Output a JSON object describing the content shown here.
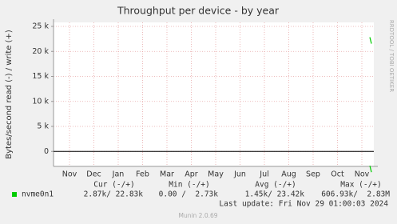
{
  "chart_data": {
    "type": "line",
    "title": "Throughput per device - by year",
    "y_label": "Bytes/second read (-) / write (+)",
    "side_text": "RRDTOOL / TOBI OETIKER",
    "categories": [
      "Nov",
      "Dec",
      "Jan",
      "Feb",
      "Mar",
      "Apr",
      "May",
      "Jun",
      "Jul",
      "Aug",
      "Sep",
      "Oct",
      "Nov"
    ],
    "series": [
      {
        "name": "nvme0n1",
        "color": "#00cc00",
        "values": [
          null,
          null,
          null,
          null,
          null,
          null,
          null,
          null,
          null,
          null,
          null,
          null,
          22830
        ],
        "read_values": [
          null,
          null,
          null,
          null,
          null,
          null,
          null,
          null,
          null,
          null,
          null,
          null,
          -2870
        ]
      }
    ],
    "ylim": [
      -3000,
      25800
    ],
    "yticks": [
      0,
      {
        "value": 5000,
        "label": "5 k"
      },
      {
        "value": 10000,
        "label": "10 k"
      },
      {
        "value": 15000,
        "label": "15 k"
      },
      {
        "value": 20000,
        "label": "20 k"
      },
      {
        "value": 25000,
        "label": "25 k"
      }
    ],
    "grid": true,
    "legend": {
      "headers": [
        "Cur (-/+)",
        "Min (-/+)",
        "Avg (-/+)",
        "Max (-/+)"
      ],
      "rows": [
        [
          "2.87k/ 22.83k",
          "0.00 /  2.73k",
          "1.45k/ 23.42k",
          "606.93k/  2.83M"
        ]
      ]
    },
    "last_update": "Last update: Fri Nov 29 01:00:03 2024",
    "footer": "Munin 2.0.69"
  }
}
